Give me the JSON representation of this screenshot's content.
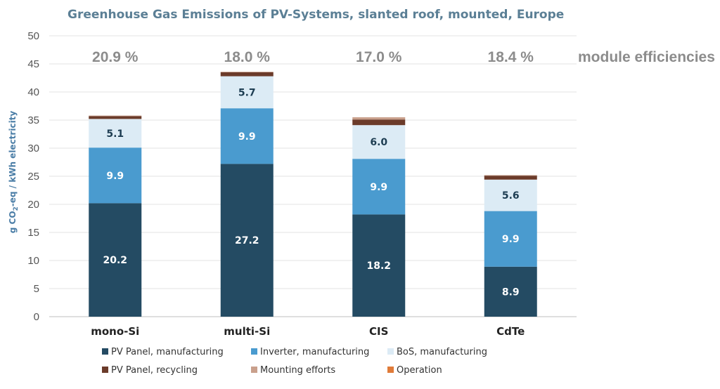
{
  "chart_data": {
    "type": "bar",
    "stacked": true,
    "title": "Greenhouse Gas Emissions of PV-Systems, slanted roof, mounted, Europe",
    "ylabel_prefix": "g CO",
    "ylabel_sub": "2",
    "ylabel_suffix": "-eq / kWh electricity",
    "ylim": [
      0,
      50
    ],
    "yticks": [
      "0",
      "5",
      "10",
      "15",
      "20",
      "25",
      "30",
      "35",
      "40",
      "45",
      "50"
    ],
    "categories": [
      "mono-Si",
      "multi-Si",
      "CIS",
      "CdTe"
    ],
    "efficiency_label": "module efficiencies",
    "efficiencies": [
      "20.9 %",
      "18.0 %",
      "17.0 %",
      "18.4 %"
    ],
    "series": [
      {
        "name": "PV Panel, manufacturing",
        "color": "#244b63",
        "label_color": "#ffffff",
        "values": [
          20.2,
          27.2,
          18.2,
          8.9
        ],
        "labels": [
          "20.2",
          "27.2",
          "18.2",
          "8.9"
        ]
      },
      {
        "name": "Inverter, manufacturing",
        "color": "#4a9bcf",
        "label_color": "#ffffff",
        "values": [
          9.9,
          9.9,
          9.9,
          9.9
        ],
        "labels": [
          "9.9",
          "9.9",
          "9.9",
          "9.9"
        ]
      },
      {
        "name": "BoS, manufacturing",
        "color": "#dcebf5",
        "label_color": "#1d3d52",
        "values": [
          5.1,
          5.7,
          6.0,
          5.6
        ],
        "labels": [
          "5.1",
          "5.7",
          "6.0",
          "5.6"
        ]
      },
      {
        "name": "PV Panel, recycling",
        "color": "#6b3b2a",
        "label_color": "#ffffff",
        "values": [
          0.5,
          0.7,
          1.0,
          0.7
        ],
        "labels": []
      },
      {
        "name": "Mounting efforts",
        "color": "#c9a08c",
        "label_color": "#ffffff",
        "values": [
          0.1,
          0.1,
          0.4,
          0.1
        ],
        "labels": []
      },
      {
        "name": "Operation",
        "color": "#e07b39",
        "label_color": "#ffffff",
        "values": [
          0.0,
          0.0,
          0.0,
          0.0
        ],
        "labels": []
      }
    ]
  }
}
